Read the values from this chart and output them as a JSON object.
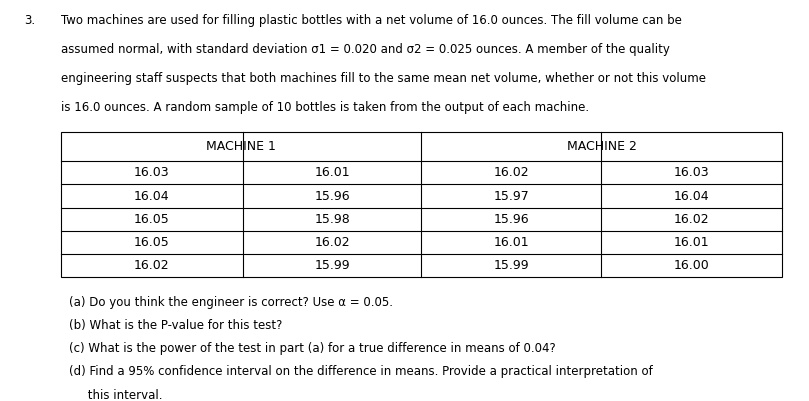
{
  "problem_number": "3.",
  "intro_text": [
    "Two machines are used for filling plastic bottles with a net volume of 16.0 ounces. The fill volume can be",
    "assumed normal, with standard deviation σ1 = 0.020 and σ2 = 0.025 ounces. A member of the quality",
    "engineering staff suspects that both machines fill to the same mean net volume, whether or not this volume",
    "is 16.0 ounces. A random sample of 10 bottles is taken from the output of each machine."
  ],
  "machine1_header": "MACHINE 1",
  "machine2_header": "MACHINE 2",
  "machine1_col1": [
    "16.03",
    "16.04",
    "16.05",
    "16.05",
    "16.02"
  ],
  "machine1_col2": [
    "16.01",
    "15.96",
    "15.98",
    "16.02",
    "15.99"
  ],
  "machine2_col1": [
    "16.02",
    "15.97",
    "15.96",
    "16.01",
    "15.99"
  ],
  "machine2_col2": [
    "16.03",
    "16.04",
    "16.02",
    "16.01",
    "16.00"
  ],
  "bg_color": "#ffffff",
  "text_color": "#000000",
  "font_size": 8.5,
  "table_font_size": 9.0,
  "q_font_size": 8.5
}
